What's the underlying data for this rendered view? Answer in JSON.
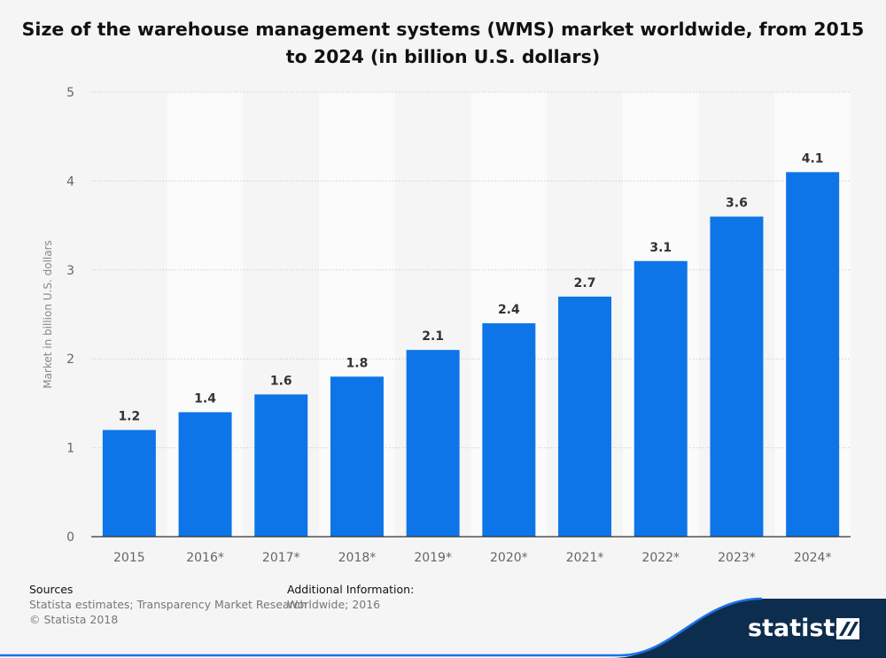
{
  "title": "Size of the warehouse management systems (WMS) market worldwide, from 2015 to 2024 (in billion U.S. dollars)",
  "chart_data": {
    "type": "bar",
    "categories": [
      "2015",
      "2016*",
      "2017*",
      "2018*",
      "2019*",
      "2020*",
      "2021*",
      "2022*",
      "2023*",
      "2024*"
    ],
    "values": [
      1.2,
      1.4,
      1.6,
      1.8,
      2.1,
      2.4,
      2.7,
      3.1,
      3.6,
      4.1
    ],
    "value_labels": [
      "1.2",
      "1.4",
      "1.6",
      "1.8",
      "2.1",
      "2.4",
      "2.7",
      "3.1",
      "3.6",
      "4.1"
    ],
    "ylabel": "Market in billion U.S. dollars",
    "xlabel": "",
    "ylim": [
      0,
      5
    ],
    "yticks": [
      "0",
      "1",
      "2",
      "3",
      "4",
      "5"
    ],
    "grid": true,
    "bar_color": "#0d75e8"
  },
  "footer": {
    "sources_heading": "Sources",
    "sources_text": "Statista estimates; Transparency Market Research",
    "copyright": "© Statista 2018",
    "additional_heading": "Additional Information:",
    "additional_text": "Worldwide; 2016"
  },
  "brand": {
    "name": "statista",
    "color": "#0d2d4f"
  }
}
